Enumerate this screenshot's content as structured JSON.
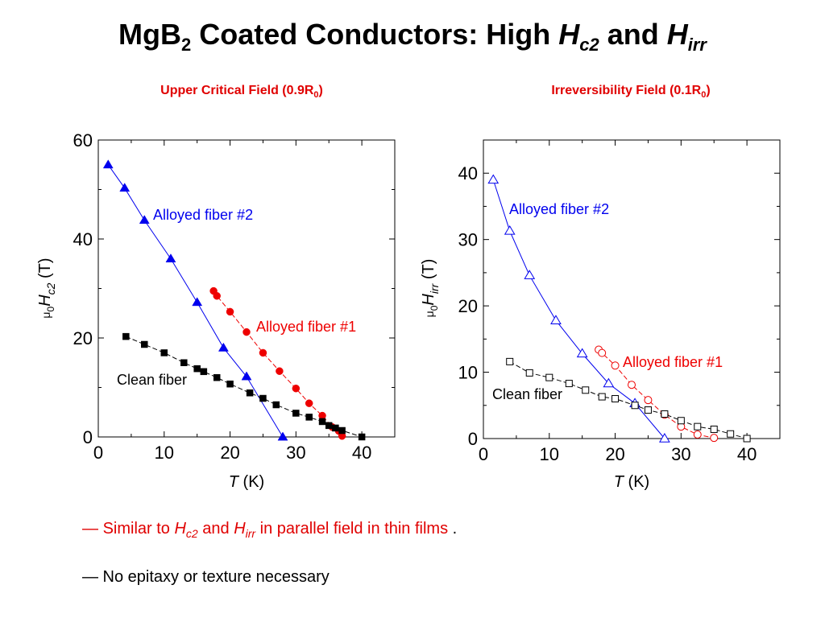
{
  "title": {
    "base": "MgB",
    "base_sub": "2",
    "mid": " Coated Conductors: High ",
    "h1": "H",
    "h1_sub": "c2",
    "and": " and ",
    "h2": "H",
    "h2_sub": "irr"
  },
  "subtitles": {
    "left": {
      "text": "Upper Critical Field (0.9R",
      "sub": "0",
      "close": ")"
    },
    "right": {
      "text": "Irreversibility Field (0.1R",
      "sub": "0",
      "close": ")"
    }
  },
  "colors": {
    "blue": "#0000ee",
    "red": "#ee0000",
    "black": "#000000",
    "gray": "#333333",
    "accent": "#e00000"
  },
  "bullets": [
    {
      "dash": "— ",
      "a": "Similar to ",
      "h1": "H",
      "h1_sub": "c2",
      "b": " and ",
      "h2": "H",
      "h2_sub": "irr",
      "c": " in parallel field in thin films",
      "d": " ."
    },
    {
      "text": "— No epitaxy or texture necessary"
    }
  ],
  "chart_data": [
    {
      "type": "scatter",
      "title": "Upper Critical Field (0.9R0)",
      "xlabel": "T (K)",
      "ylabel": "μ0Hc2 (T)",
      "xlim": [
        0,
        45
      ],
      "ylim": [
        0,
        60
      ],
      "xticks": [
        0,
        10,
        20,
        30,
        40
      ],
      "yticks": [
        0,
        20,
        40,
        60
      ],
      "markers": "filled",
      "series": [
        {
          "name": "Alloyed fiber #2",
          "marker": "triangle",
          "color": "blue",
          "x": [
            1.5,
            4,
            7,
            11,
            15,
            19,
            22.5,
            28
          ],
          "y": [
            55,
            50.3,
            43.8,
            36,
            27.2,
            18,
            12.2,
            0
          ]
        },
        {
          "name": "Alloyed fiber #1",
          "marker": "circle",
          "color": "red",
          "x": [
            17.5,
            18,
            20,
            22.5,
            25,
            27.5,
            30,
            32,
            34,
            35.5,
            36.5,
            37
          ],
          "y": [
            29.5,
            28.5,
            25.3,
            21.2,
            17,
            13.3,
            9.8,
            6.8,
            4.3,
            2,
            1.2,
            0.2
          ]
        },
        {
          "name": "Clean fiber",
          "marker": "square",
          "color": "black",
          "x": [
            4.2,
            7,
            10,
            13,
            15,
            16,
            18,
            20,
            23,
            25,
            27,
            30,
            32,
            34,
            35,
            36,
            37,
            40
          ],
          "y": [
            20.3,
            18.7,
            17,
            15,
            13.8,
            13.2,
            12,
            10.7,
            8.9,
            7.8,
            6.5,
            4.8,
            4,
            3.1,
            2.3,
            1.8,
            1.3,
            0
          ]
        }
      ]
    },
    {
      "type": "scatter",
      "title": "Irreversibility Field (0.1R0)",
      "xlabel": "T (K)",
      "ylabel": "μ0Hirr (T)",
      "xlim": [
        0,
        45
      ],
      "ylim": [
        0,
        45
      ],
      "xticks": [
        0,
        10,
        20,
        30,
        40
      ],
      "yticks": [
        0,
        10,
        20,
        30,
        40
      ],
      "markers": "open",
      "series": [
        {
          "name": "Alloyed fiber #2",
          "marker": "triangle",
          "color": "blue",
          "x": [
            1.5,
            4,
            7,
            11,
            15,
            19,
            23,
            27.5
          ],
          "y": [
            39,
            31.3,
            24.6,
            17.8,
            12.8,
            8.3,
            5.3,
            0
          ]
        },
        {
          "name": "Alloyed fiber #1",
          "marker": "circle",
          "color": "red",
          "x": [
            17.5,
            18,
            20,
            22.5,
            25,
            27.5,
            30,
            32.5,
            35
          ],
          "y": [
            13.4,
            12.9,
            11,
            8.1,
            5.8,
            3.6,
            1.8,
            0.6,
            0.1
          ]
        },
        {
          "name": "Clean fiber",
          "marker": "square",
          "color": "black",
          "x": [
            4,
            7,
            10,
            13,
            15.5,
            18,
            20,
            23,
            25,
            27.5,
            30,
            32.5,
            35,
            37.5,
            40
          ],
          "y": [
            11.6,
            9.9,
            9.2,
            8.3,
            7.3,
            6.3,
            6,
            5,
            4.3,
            3.7,
            2.7,
            1.8,
            1.4,
            0.7,
            0
          ]
        }
      ]
    }
  ]
}
